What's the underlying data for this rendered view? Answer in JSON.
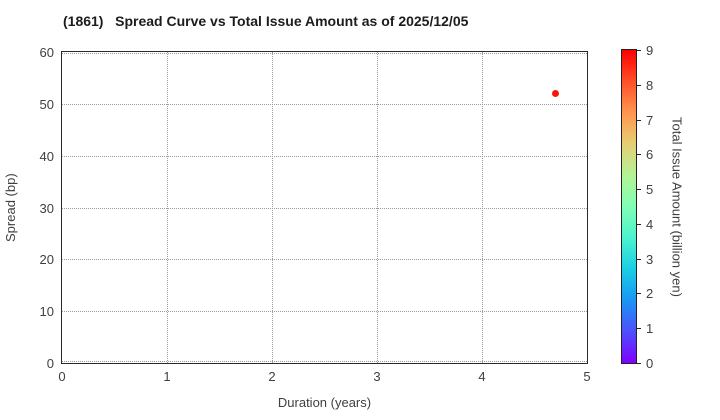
{
  "chart_data": {
    "type": "scatter",
    "title": "(1861)   Spread Curve vs Total Issue Amount as of 2025/12/05",
    "xlabel": "Duration (years)",
    "ylabel": "Spread (bp)",
    "xlim": [
      0,
      5
    ],
    "ylim": [
      0,
      60
    ],
    "xticks": [
      0,
      1,
      2,
      3,
      4,
      5
    ],
    "yticks": [
      0,
      10,
      20,
      30,
      40,
      50,
      60
    ],
    "grid": true,
    "legend": false,
    "points": [
      {
        "x": 4.7,
        "y": 52,
        "value": 9,
        "color": "#fa170a"
      }
    ],
    "colorbar": {
      "label": "Total Issue Amount (billion yen)",
      "min": 0,
      "max": 9,
      "ticks": [
        0,
        1,
        2,
        3,
        4,
        5,
        6,
        7,
        8,
        9
      ],
      "colormap": "rainbow",
      "gradient_stops": [
        "#8000ff",
        "#4d4ffc",
        "#1a96f3",
        "#1acee3",
        "#4df3ce",
        "#80ffb4",
        "#b3f396",
        "#e6ce74",
        "#ff964f",
        "#ff4f28",
        "#ff0000"
      ]
    },
    "colors": {
      "grid": "#9a9a9a",
      "spine": "#2b2b2b",
      "tick_text": "#3f3f3f",
      "title_text": "#1c1c1c"
    }
  }
}
